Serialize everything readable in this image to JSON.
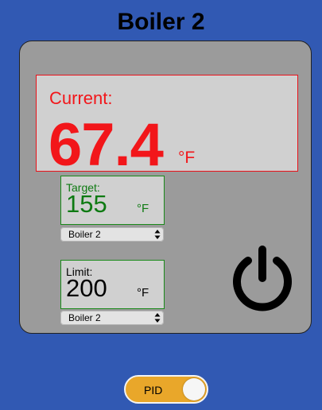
{
  "page": {
    "title": "Boiler 2",
    "accent_background": "#3159b3"
  },
  "current": {
    "label": "Current:",
    "value": "67.4",
    "unit": "°F",
    "color": "#f2161a"
  },
  "target": {
    "label": "Target:",
    "value": "155",
    "unit": "°F",
    "color": "#0e7a12",
    "source_select": {
      "selected": "Boiler 2"
    }
  },
  "limit": {
    "label": "Limit:",
    "value": "200",
    "unit": "°F",
    "source_select": {
      "selected": "Boiler 2"
    }
  },
  "power": {
    "icon": "power-icon"
  },
  "mode_toggle": {
    "label": "PID",
    "color": "#e9a72a"
  }
}
